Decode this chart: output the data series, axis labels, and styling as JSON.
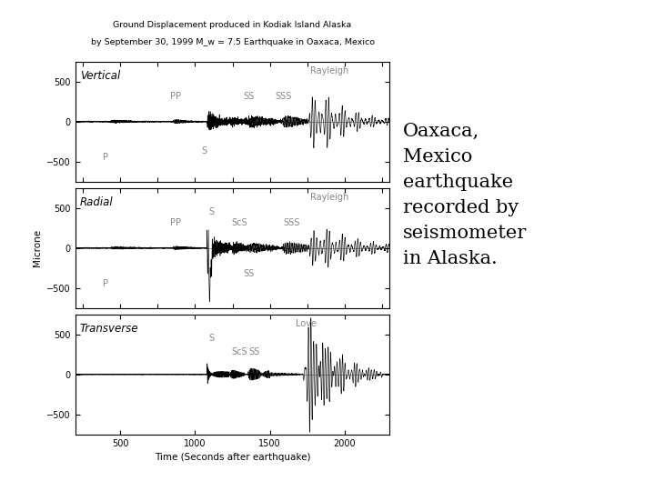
{
  "title_line1": "Ground Displacement produced in Kodiak Island Alaska",
  "title_line2": "by September 30, 1999 M_w = 7.5 Earthquake in Oaxaca, Mexico",
  "xlabel": "Time (Seconds after earthquake)",
  "ylabel": "Microne",
  "xlim": [
    200,
    2300
  ],
  "ylim": [
    -750,
    750
  ],
  "yticks": [
    -500,
    0,
    500
  ],
  "xticks": [
    500,
    1000,
    1500,
    2000
  ],
  "subplot_labels": [
    "Vertical",
    "Radial",
    "Transverse"
  ],
  "annotation_text": "Oaxaca,\nMexico\nearthquake\nrecorded by\nseismometer\nin Alaska.",
  "bg_color": "#ffffff",
  "wave_color": "#000000",
  "seed": 42,
  "p_arr": 430,
  "pp_arr": 850,
  "s_arr": 1080,
  "scs_arr": 1230,
  "ss_arr": 1350,
  "sss_arr": 1580,
  "ray_arr": 1750
}
